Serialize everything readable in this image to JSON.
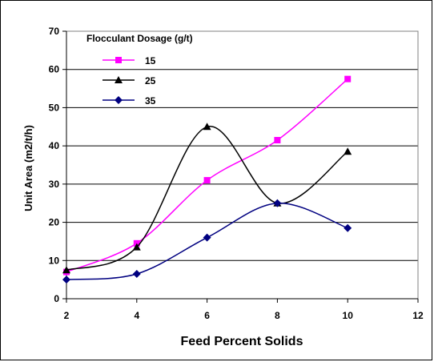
{
  "chart_data": {
    "type": "line",
    "xlabel": "Feed Percent Solids",
    "ylabel": "Unit Area (m2/t/h)",
    "xlim": [
      2,
      12
    ],
    "ylim": [
      0,
      70
    ],
    "x_ticks": [
      "2",
      "4",
      "6",
      "8",
      "10",
      "12"
    ],
    "y_ticks": [
      "0",
      "10",
      "20",
      "30",
      "40",
      "50",
      "60",
      "70"
    ],
    "grid": "horizontal",
    "legend": {
      "title": "Flocculant Dosage (g/t)",
      "placement": "top-left"
    },
    "series": [
      {
        "name": "15",
        "color": "#ff00ff",
        "marker": "square",
        "x": [
          2,
          4,
          6,
          8,
          10
        ],
        "y": [
          7,
          14.5,
          31,
          41.5,
          57.5
        ]
      },
      {
        "name": "25",
        "color": "#000000",
        "marker": "triangle",
        "x": [
          2,
          4,
          6,
          8,
          10
        ],
        "y": [
          7.5,
          13.5,
          45,
          25,
          38.5
        ]
      },
      {
        "name": "35",
        "color": "#000080",
        "marker": "diamond",
        "x": [
          2,
          4,
          6,
          8,
          10
        ],
        "y": [
          5,
          6.5,
          16,
          25,
          18.5
        ]
      }
    ]
  }
}
